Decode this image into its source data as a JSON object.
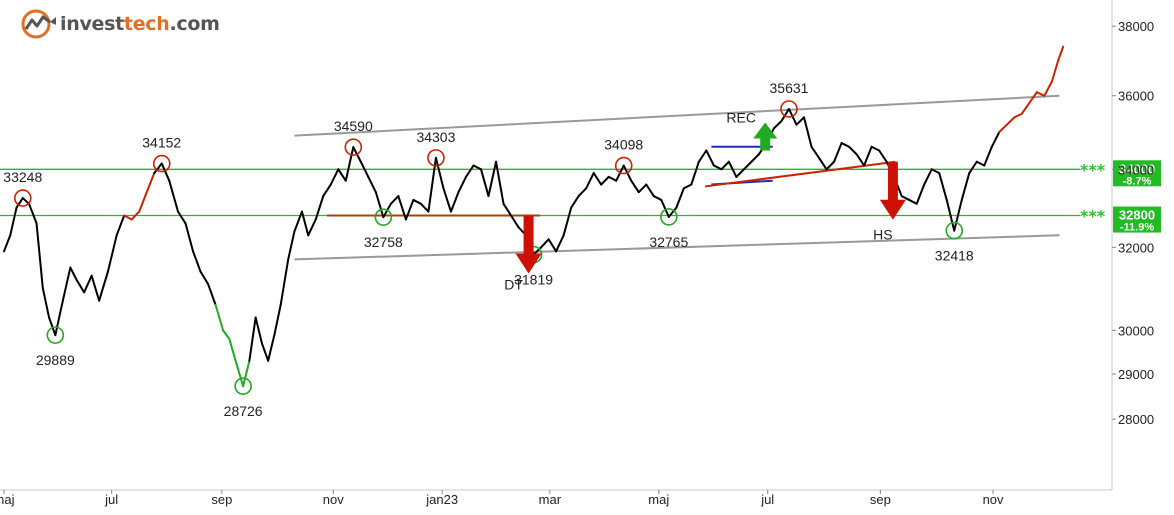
{
  "brand": {
    "name_part1": "invest",
    "name_part2": "tech",
    "name_part3": ".com",
    "accent_color": "#e46f24",
    "icon": "trend-arrow-logo-icon"
  },
  "colors": {
    "price_default": "#000000",
    "price_up": "#cc2200",
    "price_down": "#22aa22",
    "support_resistance": "#22bb22",
    "channel": "#999999",
    "top_circle": "#cc2200",
    "bottom_circle": "#22aa22",
    "sell_arrow": "#cc1100",
    "buy_arrow": "#22aa22",
    "formation_line": "#aa4400",
    "rec_line_top": "#1f2bb3",
    "rec_line_bottom": "#cc2200",
    "hs_neck": "#cc2200"
  },
  "chart_data": {
    "type": "line",
    "scale": "log",
    "ylim": [
      26500,
      38600
    ],
    "y_ticks": [
      28000,
      29000,
      30000,
      32000,
      34000,
      36000,
      38000
    ],
    "y_tick_labels": [
      "28000",
      "29000",
      "30000",
      "32000",
      "34000",
      "36000",
      "38000"
    ],
    "x_ticks": [
      {
        "label": "maj",
        "t": 0
      },
      {
        "label": "jul",
        "t": 8.6
      },
      {
        "label": "sep",
        "t": 17.4
      },
      {
        "label": "nov",
        "t": 26.3
      },
      {
        "label": "jan23",
        "t": 35.0
      },
      {
        "label": "mar",
        "t": 43.6
      },
      {
        "label": "maj",
        "t": 52.3
      },
      {
        "label": "jul",
        "t": 61.0
      },
      {
        "label": "sep",
        "t": 70.0
      },
      {
        "label": "nov",
        "t": 79.0
      }
    ],
    "xlim": [
      0,
      88.5
    ],
    "series": [
      {
        "values": [
          [
            0.0,
            31900
          ],
          [
            0.5,
            32300
          ],
          [
            1.0,
            33000
          ],
          [
            1.5,
            33248
          ],
          [
            2.0,
            33100
          ],
          [
            2.6,
            32600
          ],
          [
            3.1,
            31000
          ],
          [
            3.6,
            30300
          ],
          [
            4.1,
            29889
          ],
          [
            4.7,
            30700
          ],
          [
            5.3,
            31500
          ],
          [
            5.8,
            31200
          ],
          [
            6.4,
            30900
          ],
          [
            7.0,
            31300
          ],
          [
            7.6,
            30700
          ],
          [
            8.3,
            31400
          ],
          [
            9.0,
            32300
          ],
          [
            9.6,
            32800
          ],
          [
            10.2,
            32700
          ],
          [
            10.8,
            32900
          ],
          [
            11.4,
            33400
          ],
          [
            12.0,
            33900
          ],
          [
            12.6,
            34152
          ],
          [
            13.2,
            33700
          ],
          [
            13.9,
            32900
          ],
          [
            14.5,
            32600
          ],
          [
            15.1,
            31900
          ],
          [
            15.7,
            31400
          ],
          [
            16.3,
            31100
          ],
          [
            16.9,
            30600
          ],
          [
            17.5,
            30000
          ],
          [
            18.0,
            29800
          ],
          [
            18.6,
            29200
          ],
          [
            19.1,
            28726
          ],
          [
            19.6,
            29300
          ],
          [
            20.1,
            30300
          ],
          [
            20.6,
            29700
          ],
          [
            21.1,
            29300
          ],
          [
            21.6,
            29900
          ],
          [
            22.1,
            30600
          ],
          [
            22.7,
            31700
          ],
          [
            23.2,
            32400
          ],
          [
            23.8,
            32900
          ],
          [
            24.3,
            32300
          ],
          [
            24.9,
            32700
          ],
          [
            25.5,
            33300
          ],
          [
            26.1,
            33600
          ],
          [
            26.7,
            34000
          ],
          [
            27.3,
            33700
          ],
          [
            27.9,
            34590
          ],
          [
            28.5,
            34200
          ],
          [
            29.1,
            33800
          ],
          [
            29.7,
            33400
          ],
          [
            30.3,
            32758
          ],
          [
            30.9,
            33100
          ],
          [
            31.5,
            33300
          ],
          [
            32.1,
            32700
          ],
          [
            32.7,
            33200
          ],
          [
            33.3,
            33100
          ],
          [
            33.9,
            32900
          ],
          [
            34.5,
            34303
          ],
          [
            35.1,
            33500
          ],
          [
            35.7,
            32900
          ],
          [
            36.3,
            33400
          ],
          [
            36.9,
            33800
          ],
          [
            37.5,
            34100
          ],
          [
            38.1,
            34000
          ],
          [
            38.7,
            33300
          ],
          [
            39.3,
            34200
          ],
          [
            39.9,
            33100
          ],
          [
            40.5,
            32800
          ],
          [
            41.1,
            32500
          ],
          [
            41.7,
            32300
          ],
          [
            42.3,
            31819
          ],
          [
            42.9,
            32000
          ],
          [
            43.5,
            32200
          ],
          [
            44.1,
            31900
          ],
          [
            44.7,
            32300
          ],
          [
            45.3,
            33000
          ],
          [
            45.9,
            33300
          ],
          [
            46.5,
            33500
          ],
          [
            47.1,
            33900
          ],
          [
            47.7,
            33600
          ],
          [
            48.3,
            33800
          ],
          [
            48.9,
            33700
          ],
          [
            49.5,
            34098
          ],
          [
            50.1,
            33700
          ],
          [
            50.7,
            33400
          ],
          [
            51.3,
            33600
          ],
          [
            51.9,
            33300
          ],
          [
            52.5,
            33200
          ],
          [
            53.1,
            32765
          ],
          [
            53.7,
            33000
          ],
          [
            54.3,
            33500
          ],
          [
            54.9,
            33600
          ],
          [
            55.5,
            34200
          ],
          [
            56.1,
            34500
          ],
          [
            56.7,
            34100
          ],
          [
            57.3,
            34000
          ],
          [
            57.9,
            34200
          ],
          [
            58.5,
            33800
          ],
          [
            59.1,
            34000
          ],
          [
            59.7,
            34200
          ],
          [
            60.3,
            34400
          ],
          [
            60.9,
            34700
          ],
          [
            61.5,
            35100
          ],
          [
            62.1,
            35300
          ],
          [
            62.7,
            35631
          ],
          [
            63.3,
            35200
          ],
          [
            63.9,
            35400
          ],
          [
            64.5,
            34600
          ],
          [
            65.1,
            34300
          ],
          [
            65.7,
            34000
          ],
          [
            66.3,
            34200
          ],
          [
            66.9,
            34700
          ],
          [
            67.5,
            34600
          ],
          [
            68.1,
            34400
          ],
          [
            68.7,
            34100
          ],
          [
            69.3,
            34600
          ],
          [
            69.9,
            34500
          ],
          [
            70.5,
            34200
          ],
          [
            71.1,
            33800
          ],
          [
            71.7,
            33300
          ],
          [
            72.3,
            33200
          ],
          [
            72.9,
            33100
          ],
          [
            73.5,
            33600
          ],
          [
            74.1,
            34000
          ],
          [
            74.7,
            33900
          ],
          [
            75.3,
            33200
          ],
          [
            75.9,
            32418
          ],
          [
            76.5,
            33200
          ],
          [
            77.1,
            33900
          ],
          [
            77.7,
            34200
          ],
          [
            78.3,
            34100
          ],
          [
            78.9,
            34600
          ],
          [
            79.5,
            35000
          ],
          [
            80.1,
            35200
          ],
          [
            80.7,
            35400
          ],
          [
            81.3,
            35500
          ],
          [
            81.9,
            35800
          ],
          [
            82.5,
            36100
          ],
          [
            83.1,
            36000
          ],
          [
            83.7,
            36400
          ],
          [
            84.2,
            37000
          ],
          [
            84.6,
            37400
          ]
        ]
      }
    ],
    "channel_lines": [
      {
        "from": [
          23.2,
          34900
        ],
        "to": [
          84.3,
          36000
        ]
      },
      {
        "from": [
          23.2,
          31700
        ],
        "to": [
          84.3,
          32300
        ]
      }
    ],
    "horizontal_levels": [
      {
        "value": 34000,
        "label": "34000",
        "pct": "-8.7%",
        "stars": "***"
      },
      {
        "value": 32800,
        "label": "32800",
        "pct": "-11.9%",
        "stars": "***"
      }
    ],
    "formation_lines": [
      {
        "from": [
          25.8,
          32800
        ],
        "to": [
          42.8,
          32800
        ],
        "kind": "dt_neck"
      },
      {
        "from": [
          56.5,
          34600
        ],
        "to": [
          61.4,
          34600
        ],
        "kind": "rec_top"
      },
      {
        "from": [
          56.5,
          33600
        ],
        "to": [
          61.4,
          33700
        ],
        "kind": "rec_bottom"
      },
      {
        "from": [
          56.0,
          33550
        ],
        "to": [
          71.2,
          34200
        ],
        "kind": "hs_neck"
      }
    ],
    "signals": [
      {
        "type": "sell",
        "at": [
          41.9,
          32800
        ],
        "label": "DT"
      },
      {
        "type": "buy",
        "at": [
          60.8,
          34500
        ],
        "label": "REC"
      },
      {
        "type": "sell",
        "at": [
          71.0,
          34200
        ],
        "label": "HS"
      }
    ],
    "peaks": [
      {
        "at": [
          1.5,
          33248
        ],
        "label": "33248"
      },
      {
        "at": [
          12.6,
          34152
        ],
        "label": "34152"
      },
      {
        "at": [
          27.9,
          34590
        ],
        "label": "34590"
      },
      {
        "at": [
          34.5,
          34303
        ],
        "label": "34303"
      },
      {
        "at": [
          49.5,
          34098
        ],
        "label": "34098"
      },
      {
        "at": [
          62.7,
          35631
        ],
        "label": "35631"
      }
    ],
    "troughs": [
      {
        "at": [
          4.1,
          29889
        ],
        "label": "29889"
      },
      {
        "at": [
          19.1,
          28726
        ],
        "label": "28726"
      },
      {
        "at": [
          30.3,
          32758
        ],
        "label": "32758"
      },
      {
        "at": [
          42.3,
          31819
        ],
        "label": "31819"
      },
      {
        "at": [
          53.1,
          32765
        ],
        "label": "32765"
      },
      {
        "at": [
          75.9,
          32418
        ],
        "label": "32418"
      }
    ]
  }
}
